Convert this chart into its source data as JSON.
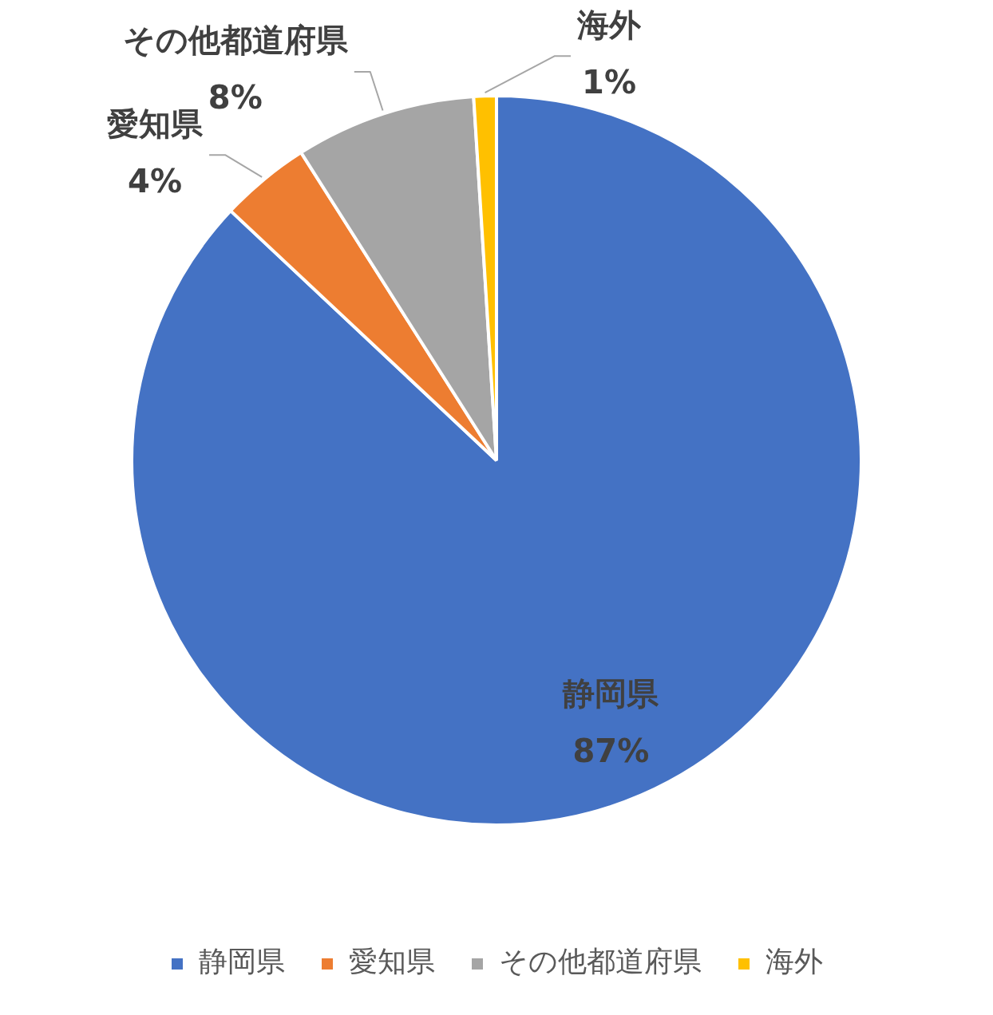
{
  "chart_data": {
    "type": "pie",
    "categories": [
      "静岡県",
      "愛知県",
      "その他都道府県",
      "海外"
    ],
    "values": [
      87,
      4,
      8,
      1
    ],
    "colors": [
      "#4472c4",
      "#ed7d31",
      "#a5a5a5",
      "#ffc000"
    ],
    "value_labels": [
      "87%",
      "4%",
      "8%",
      "1%"
    ],
    "legend": "bottom"
  }
}
